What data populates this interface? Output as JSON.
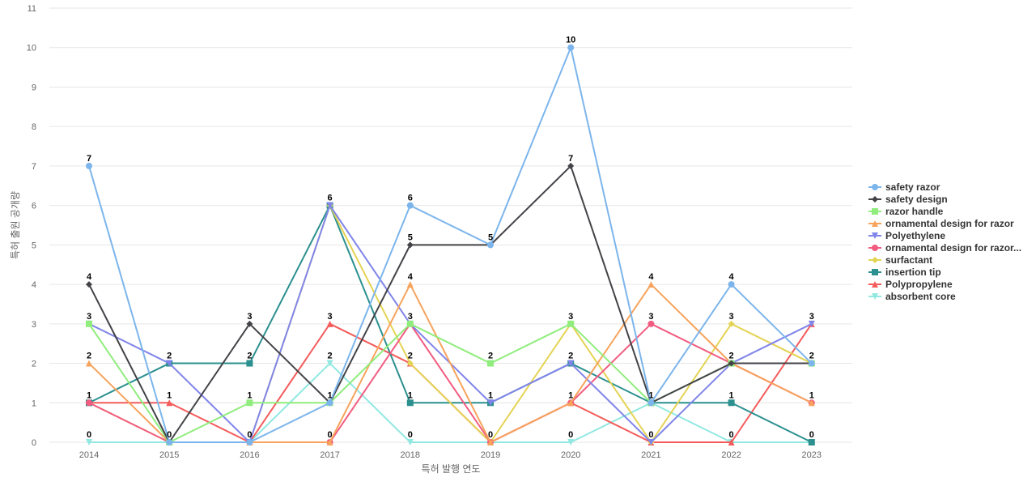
{
  "chart_data": {
    "type": "line",
    "title": "",
    "xlabel": "특허 발행 연도",
    "ylabel": "특허 출원 공개량",
    "ylim": [
      0,
      11
    ],
    "yticks": [
      "0",
      "1",
      "2",
      "3",
      "4",
      "5",
      "6",
      "7",
      "8",
      "9",
      "10",
      "11"
    ],
    "grid": true,
    "legend_position": "right",
    "categories": [
      "2014",
      "2015",
      "2016",
      "2017",
      "2018",
      "2019",
      "2020",
      "2021",
      "2022",
      "2023"
    ],
    "series": [
      {
        "name": "safety razor",
        "color": "#7cb5ec",
        "marker": "circle",
        "values": [
          7,
          0,
          0,
          1,
          6,
          5,
          10,
          1,
          4,
          2
        ]
      },
      {
        "name": "safety design",
        "color": "#434348",
        "marker": "diamond",
        "values": [
          4,
          0,
          3,
          1,
          5,
          5,
          7,
          1,
          2,
          2
        ]
      },
      {
        "name": "razor handle",
        "color": "#90ed7d",
        "marker": "square",
        "values": [
          3,
          0,
          1,
          1,
          3,
          2,
          3,
          1,
          2,
          2
        ]
      },
      {
        "name": "ornamental design for razor",
        "color": "#f7a35c",
        "marker": "triangle",
        "values": [
          2,
          0,
          0,
          0,
          4,
          0,
          1,
          4,
          2,
          1
        ]
      },
      {
        "name": "Polyethylene",
        "color": "#8085e9",
        "marker": "triangle-down",
        "values": [
          3,
          2,
          0,
          6,
          3,
          1,
          2,
          0,
          2,
          3
        ]
      },
      {
        "name": "ornamental design for razor...",
        "color": "#f15c80",
        "marker": "circle",
        "values": [
          1,
          0,
          0,
          0,
          3,
          0,
          1,
          3,
          2,
          1
        ]
      },
      {
        "name": "surfactant",
        "color": "#e4d354",
        "marker": "diamond",
        "values": [
          1,
          0,
          0,
          6,
          2,
          0,
          3,
          0,
          3,
          2
        ]
      },
      {
        "name": "insertion tip",
        "color": "#2b908f",
        "marker": "square",
        "values": [
          1,
          2,
          2,
          6,
          1,
          1,
          2,
          1,
          1,
          0
        ]
      },
      {
        "name": "Polypropylene",
        "color": "#f45b5b",
        "marker": "triangle",
        "values": [
          1,
          1,
          0,
          3,
          2,
          0,
          1,
          0,
          0,
          3
        ]
      },
      {
        "name": "absorbent core",
        "color": "#91e8e1",
        "marker": "triangle-down",
        "values": [
          0,
          0,
          0,
          2,
          0,
          0,
          0,
          1,
          0,
          0
        ]
      }
    ],
    "data_labels": [
      {
        "x": "2014",
        "value": 7
      },
      {
        "x": "2014",
        "value": 4
      },
      {
        "x": "2014",
        "value": 3
      },
      {
        "x": "2014",
        "value": 2
      },
      {
        "x": "2014",
        "value": 1
      },
      {
        "x": "2014",
        "value": 0
      },
      {
        "x": "2015",
        "value": 2
      },
      {
        "x": "2015",
        "value": 1
      },
      {
        "x": "2015",
        "value": 0
      },
      {
        "x": "2016",
        "value": 3
      },
      {
        "x": "2016",
        "value": 2
      },
      {
        "x": "2016",
        "value": 1
      },
      {
        "x": "2016",
        "value": 0
      },
      {
        "x": "2017",
        "value": 6
      },
      {
        "x": "2017",
        "value": 3
      },
      {
        "x": "2017",
        "value": 2
      },
      {
        "x": "2017",
        "value": 1
      },
      {
        "x": "2017",
        "value": 0
      },
      {
        "x": "2018",
        "value": 6
      },
      {
        "x": "2018",
        "value": 5
      },
      {
        "x": "2018",
        "value": 4
      },
      {
        "x": "2018",
        "value": 3
      },
      {
        "x": "2018",
        "value": 2
      },
      {
        "x": "2018",
        "value": 1
      },
      {
        "x": "2018",
        "value": 0
      },
      {
        "x": "2019",
        "value": 5
      },
      {
        "x": "2019",
        "value": 2
      },
      {
        "x": "2019",
        "value": 1
      },
      {
        "x": "2019",
        "value": 0
      },
      {
        "x": "2020",
        "value": 10
      },
      {
        "x": "2020",
        "value": 7
      },
      {
        "x": "2020",
        "value": 3
      },
      {
        "x": "2020",
        "value": 2
      },
      {
        "x": "2020",
        "value": 1
      },
      {
        "x": "2020",
        "value": 0
      },
      {
        "x": "2021",
        "value": 4
      },
      {
        "x": "2021",
        "value": 3
      },
      {
        "x": "2021",
        "value": 1
      },
      {
        "x": "2021",
        "value": 0
      },
      {
        "x": "2022",
        "value": 4
      },
      {
        "x": "2022",
        "value": 3
      },
      {
        "x": "2022",
        "value": 2
      },
      {
        "x": "2022",
        "value": 1
      },
      {
        "x": "2022",
        "value": 0
      },
      {
        "x": "2023",
        "value": 3
      },
      {
        "x": "2023",
        "value": 2
      },
      {
        "x": "2023",
        "value": 1
      },
      {
        "x": "2023",
        "value": 0
      }
    ]
  }
}
